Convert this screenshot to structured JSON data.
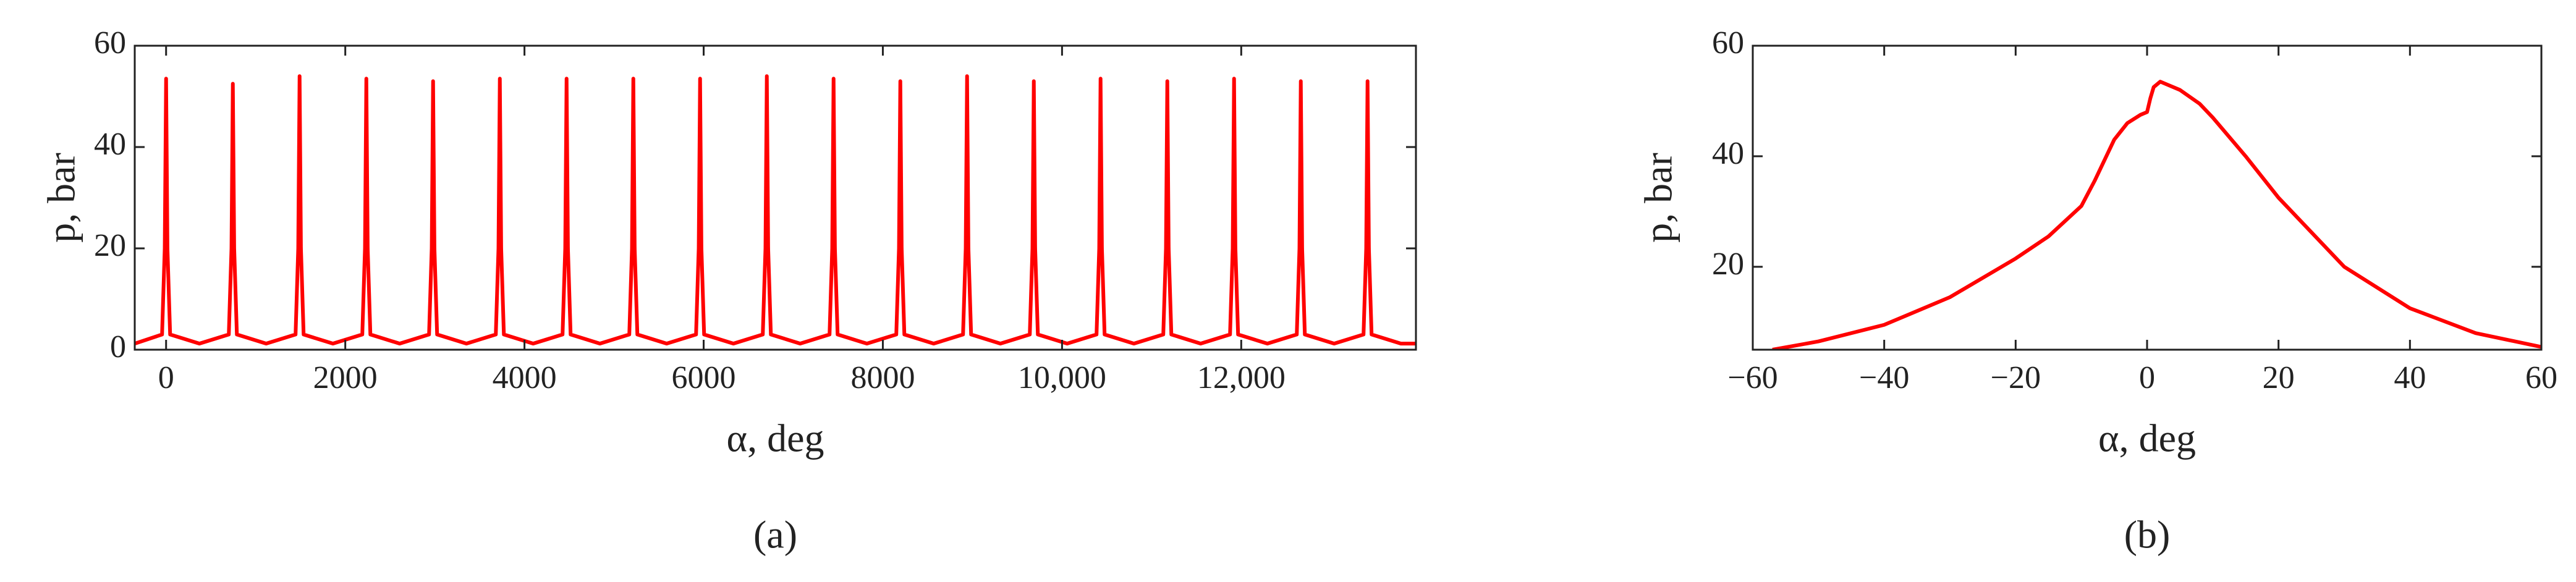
{
  "chart_data": [
    {
      "type": "line",
      "label": "(a)",
      "xlabel": "α, deg",
      "ylabel": "p, bar",
      "color": "#ff0000",
      "xlim": [
        -350,
        13950
      ],
      "ylim": [
        0,
        60
      ],
      "xticks": [
        0,
        2000,
        4000,
        6000,
        8000,
        {
          "value": 10000,
          "label": "10,000"
        },
        {
          "value": 12000,
          "label": "12,000"
        }
      ],
      "yticks": [
        0,
        20,
        40,
        60
      ],
      "x": [
        -350,
        -45,
        -15,
        0,
        15,
        45,
        372,
        700,
        730,
        745,
        760,
        790,
        1117,
        1445,
        1475,
        1490,
        1505,
        1535,
        1862,
        2190,
        2220,
        2235,
        2250,
        2280,
        2607,
        2935,
        2965,
        2980,
        2995,
        3025,
        3352,
        3680,
        3710,
        3725,
        3740,
        3770,
        4097,
        4425,
        4455,
        4470,
        4485,
        4515,
        4842,
        5170,
        5200,
        5215,
        5230,
        5260,
        5587,
        5915,
        5945,
        5960,
        5975,
        6005,
        6332,
        6660,
        6690,
        6705,
        6720,
        6750,
        7077,
        7405,
        7435,
        7450,
        7465,
        7495,
        7822,
        8150,
        8180,
        8195,
        8210,
        8240,
        8567,
        8895,
        8925,
        8940,
        8955,
        8985,
        9312,
        9640,
        9670,
        9685,
        9700,
        9730,
        10057,
        10385,
        10415,
        10430,
        10445,
        10475,
        10802,
        11130,
        11160,
        11175,
        11190,
        11220,
        11547,
        11875,
        11905,
        11920,
        11935,
        11965,
        12292,
        12620,
        12650,
        12665,
        12680,
        12710,
        13037,
        13365,
        13395,
        13410,
        13425,
        13455,
        13782,
        13950
      ],
      "values": [
        1.2,
        3,
        20,
        53.5,
        20,
        3,
        1.2,
        3,
        20,
        52.5,
        20,
        3,
        1.2,
        3,
        20,
        54,
        20,
        3,
        1.2,
        3,
        20,
        53.5,
        20,
        3,
        1.2,
        3,
        20,
        53,
        20,
        3,
        1.2,
        3,
        20,
        53.5,
        20,
        3,
        1.2,
        3,
        20,
        53.5,
        20,
        3,
        1.2,
        3,
        20,
        53.5,
        20,
        3,
        1.2,
        3,
        20,
        53.5,
        20,
        3,
        1.2,
        3,
        20,
        54,
        20,
        3,
        1.2,
        3,
        20,
        53.5,
        20,
        3,
        1.2,
        3,
        20,
        53,
        20,
        3,
        1.2,
        3,
        20,
        54,
        20,
        3,
        1.2,
        3,
        20,
        53,
        20,
        3,
        1.2,
        3,
        20,
        53.5,
        20,
        3,
        1.2,
        3,
        20,
        53,
        20,
        3,
        1.2,
        3,
        20,
        53.5,
        20,
        3,
        1.2,
        3,
        20,
        53,
        20,
        3,
        1.2,
        3,
        20,
        53,
        20,
        3,
        1.2,
        1.2
      ]
    },
    {
      "type": "line",
      "label": "(b)",
      "xlabel": "α, deg",
      "ylabel": "p, bar",
      "color": "#ff0000",
      "xlim": [
        -60,
        60
      ],
      "ylim": [
        5,
        60
      ],
      "xticks": [
        {
          "value": -60,
          "label": "−60"
        },
        {
          "value": -40,
          "label": "−40"
        },
        {
          "value": -20,
          "label": "−20"
        },
        0,
        20,
        40,
        60
      ],
      "yticks": [
        20,
        40,
        60
      ],
      "x": [
        -57,
        -50,
        -40,
        -30,
        -20,
        -15,
        -10,
        -8,
        -5,
        -3,
        -1,
        0,
        0.5,
        1,
        2,
        3,
        5,
        8,
        10,
        15,
        20,
        30,
        40,
        50,
        60
      ],
      "values": [
        5,
        6.5,
        9.5,
        14.5,
        21.5,
        25.5,
        31,
        35.5,
        43,
        46,
        47.5,
        48,
        50.5,
        52.5,
        53.5,
        53,
        52,
        49.5,
        47,
        40,
        32.5,
        20,
        12.5,
        8,
        5.5
      ]
    }
  ]
}
